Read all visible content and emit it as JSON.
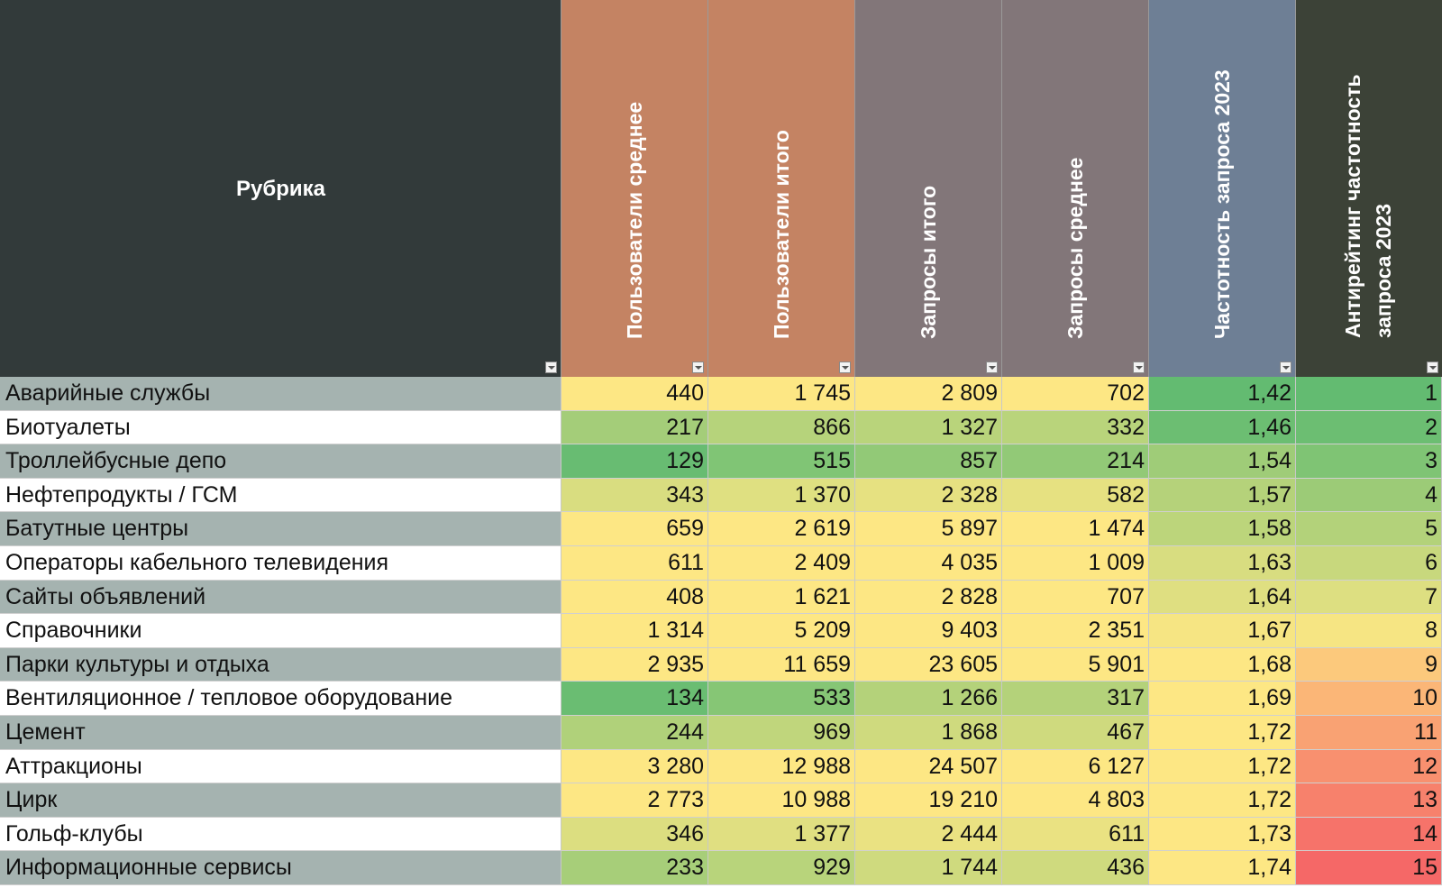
{
  "columns": [
    {
      "key": "name",
      "label": "Рубрика",
      "header_color": "#323a3a"
    },
    {
      "key": "users_avg",
      "label": "Пользователи среднее",
      "header_color": "#c48363"
    },
    {
      "key": "users_total",
      "label": "Пользователи итого",
      "header_color": "#c48363"
    },
    {
      "key": "req_total",
      "label": "Запросы итого",
      "header_color": "#827679"
    },
    {
      "key": "req_avg",
      "label": "Запросы среднее",
      "header_color": "#827679"
    },
    {
      "key": "freq",
      "label": "Частотность запроса 2023",
      "header_color": "#6e7f95"
    },
    {
      "key": "anti",
      "label_line1": "Антирейтинг частотность",
      "label_line2": "запроса 2023",
      "header_color": "#3c4237"
    }
  ],
  "rows": [
    {
      "name": "Аварийные службы",
      "users_avg": "440",
      "users_total": "1 745",
      "req_total": "2 809",
      "req_avg": "702",
      "freq": "1,42",
      "anti": "1",
      "colors": [
        "#fde784",
        "#fde784",
        "#fde784",
        "#fde784",
        "#63bb71",
        "#63bb71"
      ]
    },
    {
      "name": "Биотуалеты",
      "users_avg": "217",
      "users_total": "866",
      "req_total": "1 327",
      "req_avg": "332",
      "freq": "1,46",
      "anti": "2",
      "colors": [
        "#a4cd79",
        "#b6d37b",
        "#b9d47b",
        "#b9d47b",
        "#6cbe72",
        "#6cbe72"
      ]
    },
    {
      "name": "Троллейбусные депо",
      "users_avg": "129",
      "users_total": "515",
      "req_total": "857",
      "req_avg": "214",
      "freq": "1,54",
      "anti": "3",
      "colors": [
        "#68bc72",
        "#80c575",
        "#92c977",
        "#92c977",
        "#9fcc78",
        "#7fc474"
      ]
    },
    {
      "name": "Нефтепродукты / ГСМ",
      "users_avg": "343",
      "users_total": "1 370",
      "req_total": "2 328",
      "req_avg": "582",
      "freq": "1,57",
      "anti": "4",
      "colors": [
        "#d9dd80",
        "#dfe081",
        "#e6e181",
        "#e6e181",
        "#b5d27a",
        "#9ccb77"
      ]
    },
    {
      "name": "Батутные центры",
      "users_avg": "659",
      "users_total": "2 619",
      "req_total": "5 897",
      "req_avg": "1 474",
      "freq": "1,58",
      "anti": "5",
      "colors": [
        "#fde784",
        "#fde784",
        "#fde784",
        "#fde784",
        "#bcd57b",
        "#b3d27a"
      ]
    },
    {
      "name": "Операторы кабельного телевидения",
      "users_avg": "611",
      "users_total": "2 409",
      "req_total": "4 035",
      "req_avg": "1 009",
      "freq": "1,63",
      "anti": "6",
      "colors": [
        "#fde784",
        "#fde784",
        "#fde784",
        "#fde784",
        "#d8dd80",
        "#c8d87d"
      ]
    },
    {
      "name": "Сайты объявлений",
      "users_avg": "408",
      "users_total": "1 621",
      "req_total": "2 828",
      "req_avg": "707",
      "freq": "1,64",
      "anti": "7",
      "colors": [
        "#fde784",
        "#fde784",
        "#fde784",
        "#fde784",
        "#dfdf81",
        "#dddf81"
      ]
    },
    {
      "name": "Справочники",
      "users_avg": "1 314",
      "users_total": "5 209",
      "req_total": "9 403",
      "req_avg": "2 351",
      "freq": "1,67",
      "anti": "8",
      "colors": [
        "#fde784",
        "#fde784",
        "#fde784",
        "#fde784",
        "#f6e583",
        "#f6e583"
      ]
    },
    {
      "name": "Парки культуры и отдыха",
      "users_avg": "2 935",
      "users_total": "11 659",
      "req_total": "23 605",
      "req_avg": "5 901",
      "freq": "1,68",
      "anti": "9",
      "colors": [
        "#fde784",
        "#fde784",
        "#fde784",
        "#fde784",
        "#fde784",
        "#fcc97c"
      ]
    },
    {
      "name": "Вентиляционное / тепловое оборудование",
      "users_avg": "134",
      "users_total": "533",
      "req_total": "1 266",
      "req_avg": "317",
      "freq": "1,69",
      "anti": "10",
      "colors": [
        "#6abd72",
        "#86c675",
        "#b4d27a",
        "#b4d27a",
        "#fde784",
        "#fbb677"
      ]
    },
    {
      "name": "Цемент",
      "users_avg": "244",
      "users_total": "969",
      "req_total": "1 868",
      "req_avg": "467",
      "freq": "1,72",
      "anti": "11",
      "colors": [
        "#b0d17a",
        "#c0d67c",
        "#cfda7e",
        "#cfda7e",
        "#fde784",
        "#f9a273"
      ]
    },
    {
      "name": "Аттракционы",
      "users_avg": "3 280",
      "users_total": "12 988",
      "req_total": "24 507",
      "req_avg": "6 127",
      "freq": "1,72",
      "anti": "12",
      "colors": [
        "#fde784",
        "#fde784",
        "#fde784",
        "#fde784",
        "#fde784",
        "#f8906f"
      ]
    },
    {
      "name": "Цирк",
      "users_avg": "2 773",
      "users_total": "10 988",
      "req_total": "19 210",
      "req_avg": "4 803",
      "freq": "1,72",
      "anti": "13",
      "colors": [
        "#fde784",
        "#fde784",
        "#fde784",
        "#fde784",
        "#fde784",
        "#f7816c"
      ]
    },
    {
      "name": "Гольф-клубы",
      "users_avg": "346",
      "users_total": "1 377",
      "req_total": "2 444",
      "req_avg": "611",
      "freq": "1,73",
      "anti": "14",
      "colors": [
        "#dcde80",
        "#e0df81",
        "#eae282",
        "#eae282",
        "#fde784",
        "#f6736a"
      ]
    },
    {
      "name": "Информационные сервисы",
      "users_avg": "233",
      "users_total": "929",
      "req_total": "1 744",
      "req_avg": "436",
      "freq": "1,74",
      "anti": "15",
      "colors": [
        "#a7ce79",
        "#b8d47b",
        "#cfda7e",
        "#cfda7e",
        "#fde784",
        "#f56867"
      ]
    }
  ]
}
